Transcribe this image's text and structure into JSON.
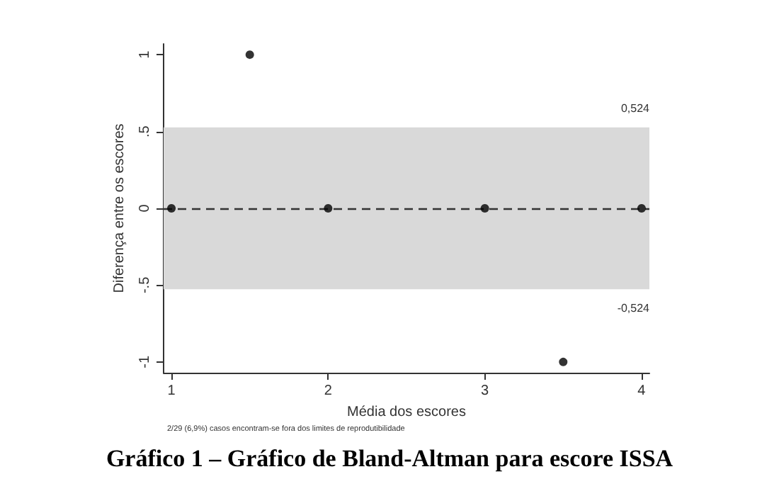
{
  "chart_data": {
    "type": "scatter",
    "title": "Gráfico 1 – Gráfico de Bland-Altman para escore ISSA",
    "xlabel": "Média dos escores",
    "ylabel": "Diferença entre os escores",
    "annotations": [
      "2/29 (6,9%) casos encontram-se fora dos limites de reprodutibilidade"
    ],
    "x": [
      1,
      1.5,
      2,
      3,
      3.5,
      4
    ],
    "series": [
      {
        "color": "#000000",
        "values": [
          0,
          1,
          0,
          0,
          -1,
          0
        ]
      }
    ],
    "xlim": [
      0.95,
      4.05
    ],
    "xticks": [
      1,
      2,
      3,
      4
    ],
    "ylim": [
      -1.07,
      1.07
    ],
    "yticks": [
      {
        "value": -1,
        "label": "-1"
      },
      {
        "value": -0.5,
        "label": "-.5"
      },
      {
        "value": 0,
        "label": "0"
      },
      {
        "value": 0.5,
        "label": ".5"
      },
      {
        "value": 1,
        "label": "1"
      }
    ],
    "bands": [
      {
        "axis": "y",
        "from": -0.524,
        "to": 0.524,
        "color": "#d9d9d9"
      }
    ],
    "ref_lines": [
      {
        "axis": "y",
        "value": 0,
        "color": "#333333",
        "line_style": "dashed"
      },
      {
        "axis": "y",
        "value": 0.524,
        "label": "0,524",
        "color": "#d9d9d9"
      },
      {
        "axis": "y",
        "value": -0.524,
        "label": "-0,524",
        "color": "#d9d9d9"
      }
    ],
    "grid": false,
    "marker": "circle"
  }
}
